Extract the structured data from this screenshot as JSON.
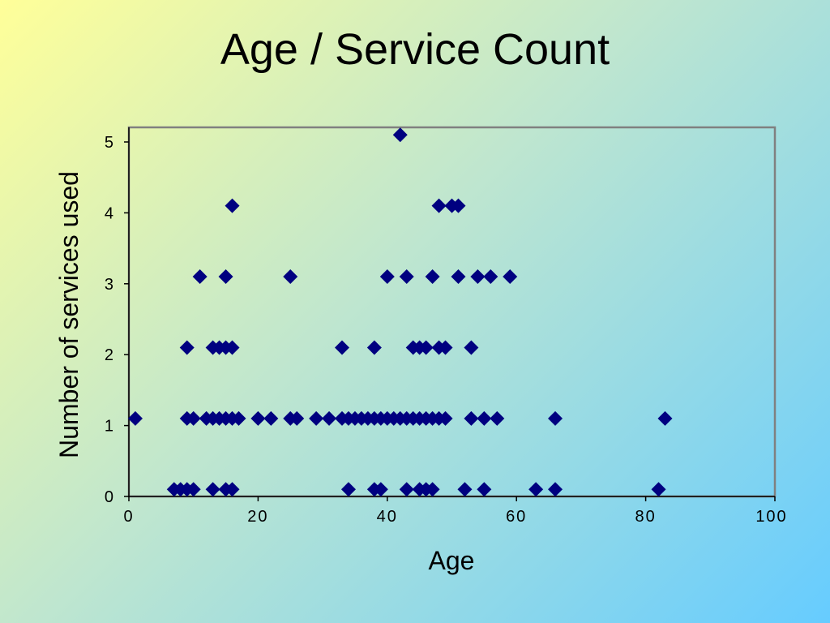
{
  "slide": {
    "title": "Age / Service Count"
  },
  "chart_data": {
    "type": "scatter",
    "title": "Age / Service Count",
    "xlabel": "Age",
    "ylabel": "Number of services used",
    "xlim": [
      0,
      100
    ],
    "ylim": [
      0,
      5
    ],
    "x_ticks": [
      0,
      20,
      40,
      60,
      80,
      100
    ],
    "y_ticks": [
      0,
      1,
      2,
      3,
      4,
      5
    ],
    "grid": false,
    "marker": "diamond",
    "marker_color": "#000080",
    "series": [
      {
        "points": [
          [
            7,
            0.1
          ],
          [
            8,
            0.1
          ],
          [
            9,
            0.1
          ],
          [
            10,
            0.1
          ],
          [
            13,
            0.1
          ],
          [
            15,
            0.1
          ],
          [
            16,
            0.1
          ],
          [
            34,
            0.1
          ],
          [
            38,
            0.1
          ],
          [
            39,
            0.1
          ],
          [
            43,
            0.1
          ],
          [
            45,
            0.1
          ],
          [
            46,
            0.1
          ],
          [
            47,
            0.1
          ],
          [
            52,
            0.1
          ],
          [
            55,
            0.1
          ],
          [
            63,
            0.1
          ],
          [
            66,
            0.1
          ],
          [
            82,
            0.1
          ],
          [
            1,
            1.1
          ],
          [
            9,
            1.1
          ],
          [
            10,
            1.1
          ],
          [
            12,
            1.1
          ],
          [
            13,
            1.1
          ],
          [
            14,
            1.1
          ],
          [
            15,
            1.1
          ],
          [
            16,
            1.1
          ],
          [
            17,
            1.1
          ],
          [
            20,
            1.1
          ],
          [
            22,
            1.1
          ],
          [
            25,
            1.1
          ],
          [
            26,
            1.1
          ],
          [
            29,
            1.1
          ],
          [
            31,
            1.1
          ],
          [
            33,
            1.1
          ],
          [
            34,
            1.1
          ],
          [
            35,
            1.1
          ],
          [
            36,
            1.1
          ],
          [
            37,
            1.1
          ],
          [
            38,
            1.1
          ],
          [
            39,
            1.1
          ],
          [
            40,
            1.1
          ],
          [
            41,
            1.1
          ],
          [
            42,
            1.1
          ],
          [
            43,
            1.1
          ],
          [
            44,
            1.1
          ],
          [
            45,
            1.1
          ],
          [
            46,
            1.1
          ],
          [
            47,
            1.1
          ],
          [
            48,
            1.1
          ],
          [
            49,
            1.1
          ],
          [
            53,
            1.1
          ],
          [
            55,
            1.1
          ],
          [
            57,
            1.1
          ],
          [
            66,
            1.1
          ],
          [
            83,
            1.1
          ],
          [
            9,
            2.1
          ],
          [
            13,
            2.1
          ],
          [
            14,
            2.1
          ],
          [
            15,
            2.1
          ],
          [
            16,
            2.1
          ],
          [
            33,
            2.1
          ],
          [
            38,
            2.1
          ],
          [
            44,
            2.1
          ],
          [
            45,
            2.1
          ],
          [
            46,
            2.1
          ],
          [
            48,
            2.1
          ],
          [
            49,
            2.1
          ],
          [
            53,
            2.1
          ],
          [
            11,
            3.1
          ],
          [
            15,
            3.1
          ],
          [
            25,
            3.1
          ],
          [
            40,
            3.1
          ],
          [
            43,
            3.1
          ],
          [
            47,
            3.1
          ],
          [
            51,
            3.1
          ],
          [
            54,
            3.1
          ],
          [
            56,
            3.1
          ],
          [
            59,
            3.1
          ],
          [
            16,
            4.1
          ],
          [
            48,
            4.1
          ],
          [
            50,
            4.1
          ],
          [
            51,
            4.1
          ],
          [
            42,
            5.1
          ]
        ]
      }
    ]
  }
}
